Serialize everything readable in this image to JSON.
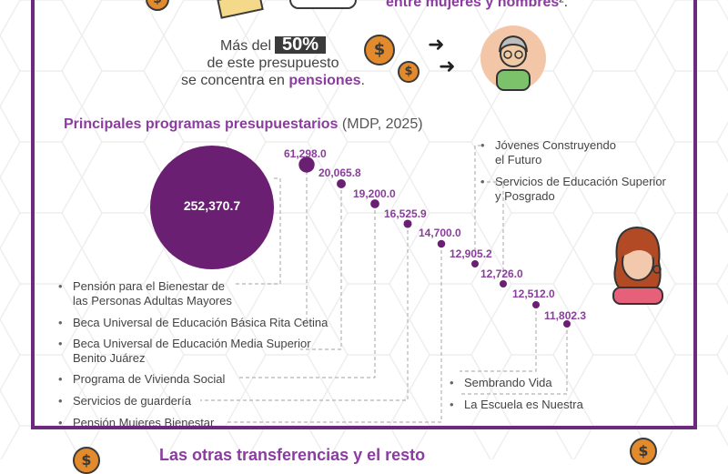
{
  "header": {
    "top_text": "entre mujeres y hombres",
    "top_suffix": "².",
    "intro_line1": "Más del",
    "intro_badge": "50%",
    "intro_line2": "de este presupuesto",
    "intro_line3": "se concentra en",
    "intro_highlight": "pensiones",
    "intro_end": "."
  },
  "icons": {
    "coin_symbol": "$",
    "arrow": "➜",
    "elderly": "elderly-person-icon",
    "woman": "woman-icon"
  },
  "colors": {
    "accent": "#8a3d9e",
    "bubble": "#6b1f73",
    "frame": "#6b2a7e",
    "coin": "#e38b2c",
    "line": "#b5b5b5"
  },
  "chart_data": {
    "type": "bubble",
    "title": "Principales programas presupuestarios",
    "unit": "(MDP, 2025)",
    "series": [
      {
        "program": "Pensión para el Bienestar de las Personas Adultas Mayores",
        "value": 252370.7,
        "label": "252,370.7"
      },
      {
        "program": "Beca Universal de Educación Básica Rita Cetina",
        "value": 61298.0,
        "label": "61,298.0"
      },
      {
        "program": "Beca Universal de Educación Media Superior Benito Juárez",
        "value": 20065.8,
        "label": "20,065.8"
      },
      {
        "program": "Programa de Vivienda Social",
        "value": 19200.0,
        "label": "19,200.0"
      },
      {
        "program": "Servicios de guardería",
        "value": 16525.9,
        "label": "16,525.9"
      },
      {
        "program": "Pensión Mujeres Bienestar",
        "value": 14700.0,
        "label": "14,700.0"
      },
      {
        "program": "Jóvenes Construyendo el Futuro",
        "value": 12905.2,
        "label": "12,905.2"
      },
      {
        "program": "Servicios de Educación Superior y Posgrado",
        "value": 12726.0,
        "label": "12,726.0"
      },
      {
        "program": "Sembrando Vida",
        "value": 12512.0,
        "label": "12,512.0"
      },
      {
        "program": "La Escuela es Nuestra",
        "value": 11802.3,
        "label": "11,802.3"
      }
    ],
    "left_list": [
      "Pensión para el Bienestar de\nlas Personas Adultas Mayores",
      "Beca Universal de Educación Básica Rita Cetina",
      "Beca Universal de Educación Media Superior\nBenito Juárez",
      "Programa de Vivienda Social",
      "Servicios de guardería",
      "Pensión Mujeres Bienestar"
    ],
    "right_top_list": [
      "Jóvenes Construyendo\nel Futuro",
      "Servicios de Educación Superior\ny Posgrado"
    ],
    "right_bottom_list": [
      "Sembrando Vida",
      "La Escuela es Nuestra"
    ]
  },
  "footer": {
    "text": "Las otras transferencias y el resto"
  }
}
